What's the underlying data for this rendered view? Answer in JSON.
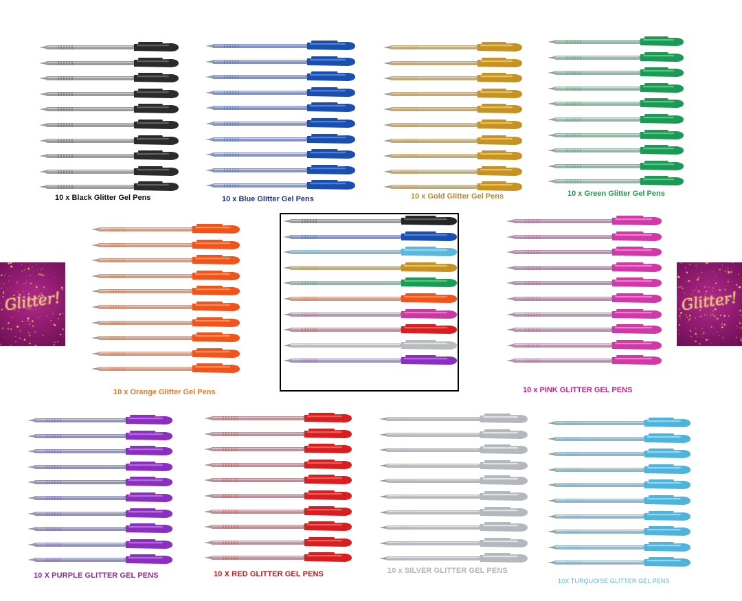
{
  "groups": [
    {
      "id": "black",
      "caption": "10 x Black Glitter Gel Pens",
      "cap_color": "#111111",
      "cap": "#2b2b2b",
      "cap_light": "#6b6b6b",
      "barrel": "#8a8a8a",
      "count": 10
    },
    {
      "id": "blue",
      "caption": "10 x Blue Glitter Gel Pens",
      "cap_color": "#1b2f8a",
      "cap": "#1a4fb0",
      "cap_light": "#5c8ad8",
      "barrel": "#6f7fb8",
      "count": 10
    },
    {
      "id": "gold",
      "caption": "10 x Gold Glitter Gel Pens",
      "cap_color": "#b8862c",
      "cap": "#c69223",
      "cap_light": "#ecc86a",
      "barrel": "#b59b63",
      "count": 10
    },
    {
      "id": "green",
      "caption": "10 x Green Glitter Gel Pens",
      "cap_color": "#1e9a4a",
      "cap": "#1a9a55",
      "cap_light": "#63cf8c",
      "barrel": "#80a890",
      "count": 10
    },
    {
      "id": "orange",
      "caption": "10 x Orange Glitter Gel Pens",
      "cap_color": "#e07a2a",
      "cap": "#f0541c",
      "cap_light": "#ff9a62",
      "barrel": "#c78a6e",
      "count": 10
    },
    {
      "id": "mixed",
      "caption": "",
      "cap_color": "#000000",
      "count": 10,
      "pens": [
        {
          "cap": "#262626",
          "cap_light": "#6b6b6b",
          "barrel": "#8a8a8a"
        },
        {
          "cap": "#1a4fb0",
          "cap_light": "#5c8ad8",
          "barrel": "#6f7fb8"
        },
        {
          "cap": "#5ab8dc",
          "cap_light": "#9edcf2",
          "barrel": "#7fa8bc"
        },
        {
          "cap": "#c69223",
          "cap_light": "#ecc86a",
          "barrel": "#b59b63"
        },
        {
          "cap": "#1a9a55",
          "cap_light": "#63cf8c",
          "barrel": "#80a890"
        },
        {
          "cap": "#f0541c",
          "cap_light": "#ff9a62",
          "barrel": "#c78a6e"
        },
        {
          "cap": "#c93a9e",
          "cap_light": "#ec86cc",
          "barrel": "#a57e9c"
        },
        {
          "cap": "#d81e1e",
          "cap_light": "#f06a6a",
          "barrel": "#b27d82"
        },
        {
          "cap": "#b9bcbf",
          "cap_light": "#e6e8ea",
          "barrel": "#a8adb2"
        },
        {
          "cap": "#8a2fc0",
          "cap_light": "#b97ae0",
          "barrel": "#8f80ac"
        }
      ]
    },
    {
      "id": "pink",
      "caption": "10 x PINK GLITTER GEL PENS",
      "cap_color": "#c0248c",
      "cap": "#cf3aa8",
      "cap_light": "#f08ad2",
      "barrel": "#a57e9c",
      "count": 10
    },
    {
      "id": "purple",
      "caption": "10 X PURPLE GLITTER GEL PENS",
      "cap_color": "#8a2a8c",
      "cap": "#8a2fc0",
      "cap_light": "#b97ae0",
      "barrel": "#7c7fae",
      "count": 10
    },
    {
      "id": "red",
      "caption": "10 X RED GLITTER GEL PENS",
      "cap_color": "#b01a1a",
      "cap": "#d81e1e",
      "cap_light": "#f06a6a",
      "barrel": "#b27d82",
      "count": 10
    },
    {
      "id": "silver",
      "caption": "10 x SILVER GLITTER GEL PENS",
      "cap_color": "#b5b5b5",
      "cap": "#b4b8bc",
      "cap_light": "#e6e8ea",
      "barrel": "#a8adb2",
      "count": 10
    },
    {
      "id": "turquoise",
      "caption": "10X TURQUOISE GLITTER GEL PENS",
      "cap_color": "#5ab4d8",
      "cap": "#4fb4dc",
      "cap_light": "#9edcf2",
      "barrel": "#7fa8bc",
      "count": 10
    }
  ],
  "decor": {
    "glitter_text": "Glitter!",
    "glitter_color": "#e8c26a"
  }
}
